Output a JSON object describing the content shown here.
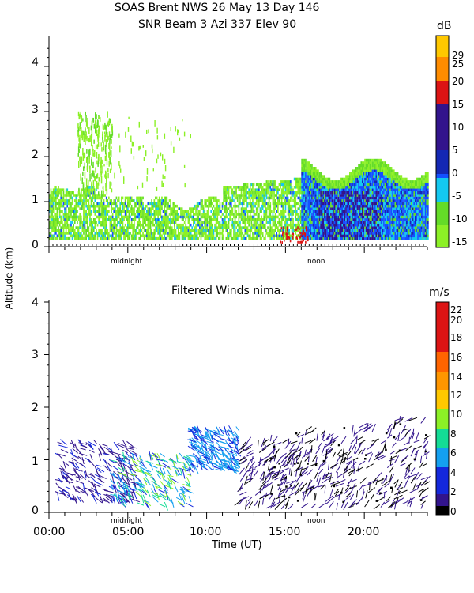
{
  "header": {
    "line1": "SOAS Brent NWS  26 May 13 Day 146",
    "line2": "SNR Beam 3 Azi 337 Elev 90"
  },
  "colors": {
    "snr_palette": [
      "#8cf026",
      "#64dc28",
      "#14c8f0",
      "#1450ff",
      "#1428b4",
      "#32148c",
      "#dc1414",
      "#ff8c00",
      "#ffc800"
    ],
    "wind_palette": [
      "#000000",
      "#32148c",
      "#1428dc",
      "#14a0f0",
      "#14dc96",
      "#8cf026",
      "#ffc800",
      "#ff9600",
      "#ff6400",
      "#dc1414"
    ]
  },
  "chart_data": [
    {
      "type": "heatmap",
      "title": "",
      "ylabel": "Altitude (km)",
      "ylim": [
        0,
        4.5
      ],
      "yticks": [
        "0",
        "1",
        "2",
        "3",
        "4"
      ],
      "x_markers": [
        "midnight",
        "noon"
      ],
      "colorbar": {
        "unit": "dB",
        "ticks": [
          "29",
          "25",
          "20",
          "15",
          "10",
          "5",
          "0",
          "-5",
          "-10",
          "-15"
        ]
      },
      "regions": [
        {
          "x": [
            0,
            24
          ],
          "y": [
            0.1,
            1.3
          ],
          "level": "-15 to -10",
          "desc": "green low-level echo"
        },
        {
          "x": [
            2,
            3.5
          ],
          "y": [
            1.0,
            3.0
          ],
          "level": "-15",
          "desc": "scattered green echo"
        },
        {
          "x": [
            16,
            24
          ],
          "y": [
            0.1,
            2.0
          ],
          "level": "-10 to 10",
          "desc": "convective boundary layer"
        },
        {
          "x": [
            14.5,
            16.5
          ],
          "y": [
            0.1,
            0.4
          ],
          "level": "15",
          "desc": "red strong echo near noon"
        }
      ]
    },
    {
      "type": "scatter",
      "title": "Filtered Winds nima.",
      "ylabel": "Altitude (km)",
      "xlabel": "Time (UT)",
      "xticks": [
        "00:00",
        "05:00",
        "10:00",
        "15:00",
        "20:00"
      ],
      "yticks": [
        "0",
        "1",
        "2",
        "3",
        "4"
      ],
      "xlim": [
        0,
        24
      ],
      "ylim": [
        0,
        4
      ],
      "x_markers": [
        "midnight",
        "noon"
      ],
      "colorbar": {
        "unit": "m/s",
        "ticks": [
          "22",
          "20",
          "18",
          "16",
          "14",
          "12",
          "10",
          "8",
          "6",
          "4",
          "2",
          "0"
        ]
      },
      "series": [
        {
          "x": [
            0.5,
            5.5
          ],
          "y": [
            0.2,
            1.35
          ],
          "speed": 3
        },
        {
          "x": [
            4,
            9
          ],
          "y": [
            0.1,
            1.1
          ],
          "speed": 7
        },
        {
          "x": [
            9,
            12
          ],
          "y": [
            0.8,
            1.6
          ],
          "speed": 6
        },
        {
          "x": [
            12,
            24
          ],
          "y": [
            0.1,
            1.8
          ],
          "speed": 3
        }
      ]
    }
  ]
}
